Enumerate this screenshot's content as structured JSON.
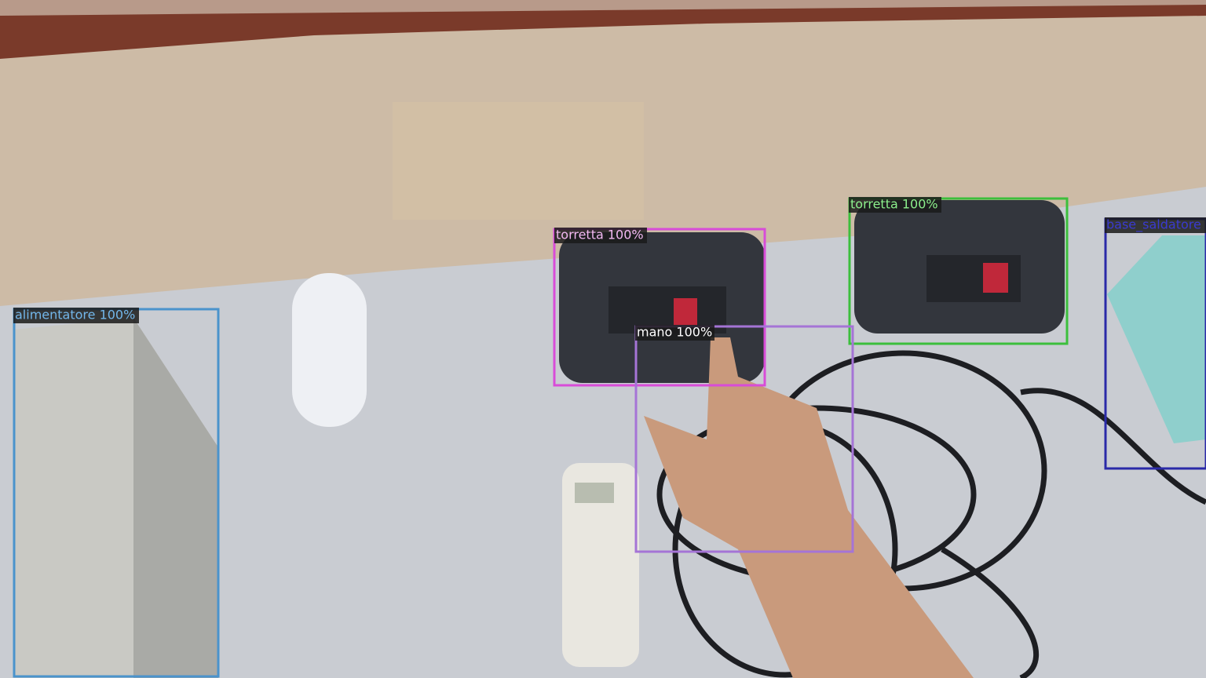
{
  "detections": [
    {
      "label": "alimentatore 100%"
    },
    {
      "label": "torretta 100%"
    },
    {
      "label": "torretta 100%"
    },
    {
      "label": "mano 100%"
    },
    {
      "label": "base_saldatore 100%"
    }
  ]
}
